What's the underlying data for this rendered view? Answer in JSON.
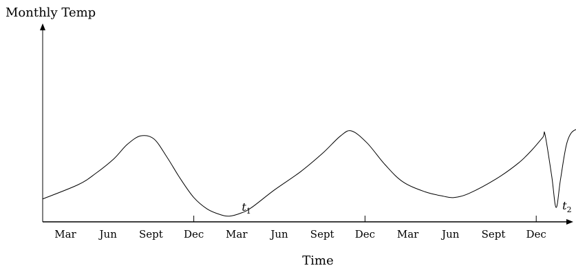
{
  "chart_data": {
    "type": "line",
    "title": "",
    "ylabel": "Monthly Temp",
    "xlabel": "Time",
    "grid": false,
    "legend": "none",
    "x_tick_labels": [
      "Mar",
      "Jun",
      "Sept",
      "Dec",
      "Mar",
      "Jun",
      "Sept",
      "Dec",
      "Mar",
      "Jun",
      "Sept",
      "Dec"
    ],
    "year_separators_after_tick": [
      3,
      7,
      11
    ],
    "y_axis_ticks": [],
    "series": [
      {
        "color": "#000000",
        "points": [
          [
            0.0,
            0.16
          ],
          [
            0.8,
            0.26
          ],
          [
            1.2,
            0.34
          ],
          [
            1.6,
            0.44
          ],
          [
            1.9,
            0.54
          ],
          [
            2.2,
            0.6
          ],
          [
            2.5,
            0.58
          ],
          [
            2.8,
            0.45
          ],
          [
            3.1,
            0.3
          ],
          [
            3.4,
            0.17
          ],
          [
            3.7,
            0.09
          ],
          [
            4.0,
            0.05
          ],
          [
            4.2,
            0.04
          ],
          [
            4.45,
            0.06
          ],
          [
            4.7,
            0.1
          ],
          [
            5.2,
            0.22
          ],
          [
            5.8,
            0.35
          ],
          [
            6.3,
            0.48
          ],
          [
            6.7,
            0.6
          ],
          [
            6.95,
            0.635
          ],
          [
            7.3,
            0.55
          ],
          [
            7.7,
            0.4
          ],
          [
            8.1,
            0.28
          ],
          [
            8.6,
            0.21
          ],
          [
            9.0,
            0.18
          ],
          [
            9.25,
            0.17
          ],
          [
            9.6,
            0.2
          ],
          [
            10.2,
            0.3
          ],
          [
            10.7,
            0.41
          ],
          [
            11.0,
            0.5
          ],
          [
            11.25,
            0.59
          ],
          [
            11.3,
            0.61
          ],
          [
            11.45,
            0.32
          ],
          [
            11.55,
            0.1
          ],
          [
            11.65,
            0.3
          ],
          [
            11.8,
            0.56
          ],
          [
            12.0,
            0.645
          ],
          [
            12.3,
            0.61
          ],
          [
            12.6,
            0.5
          ],
          [
            12.9,
            0.38
          ],
          [
            13.3,
            0.25
          ],
          [
            13.8,
            0.15
          ],
          [
            14.3,
            0.09
          ],
          [
            14.7,
            0.07
          ],
          [
            15.05,
            0.07
          ]
        ]
      }
    ],
    "annotations": [
      {
        "label": "t",
        "subscript": "1",
        "x": 4.2
      },
      {
        "label": "t",
        "subscript": "2",
        "x": 11.55
      }
    ]
  }
}
